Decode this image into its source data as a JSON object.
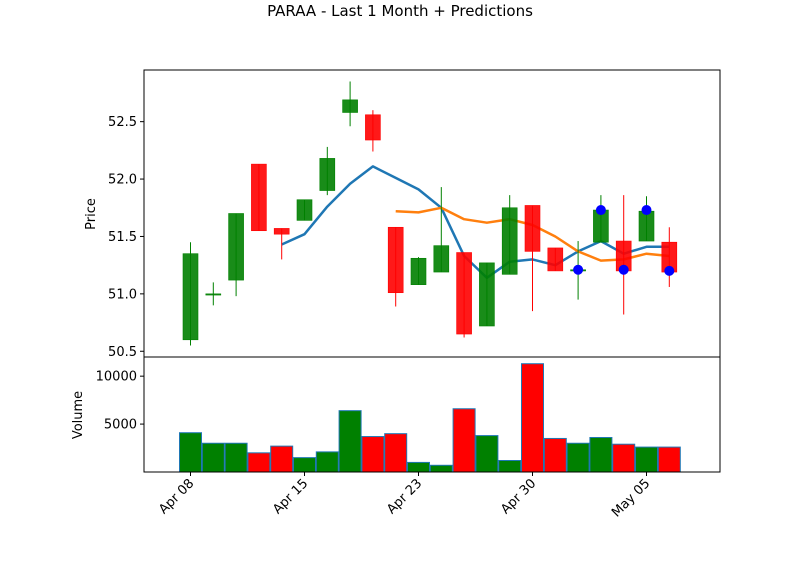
{
  "chart_data": {
    "type": "candlestick",
    "title": "PARAA - Last 1 Month + Predictions",
    "price_panel": {
      "ylabel": "Price",
      "ylim": [
        50.45,
        52.95
      ],
      "yticks": [
        "50.5",
        "51.0",
        "51.5",
        "52.0",
        "52.5"
      ],
      "ytick_values": [
        50.5,
        51.0,
        51.5,
        52.0,
        52.5
      ]
    },
    "volume_panel": {
      "ylabel": "Volume",
      "ylim": [
        0,
        12000
      ],
      "yticks": [
        "5000",
        "10000"
      ],
      "ytick_values": [
        5000,
        10000
      ]
    },
    "x_ticks": [
      {
        "label": "Apr 08",
        "index": 0
      },
      {
        "label": "Apr 15",
        "index": 5
      },
      {
        "label": "Apr 23",
        "index": 10
      },
      {
        "label": "Apr 30",
        "index": 15
      },
      {
        "label": "May 05",
        "index": 20
      }
    ],
    "candles": [
      {
        "o": 50.6,
        "h": 51.45,
        "l": 50.55,
        "c": 51.35,
        "v": 4100
      },
      {
        "o": 51.0,
        "h": 51.1,
        "l": 50.9,
        "c": 51.0,
        "v": 3000
      },
      {
        "o": 51.12,
        "h": 51.7,
        "l": 50.98,
        "c": 51.7,
        "v": 3000
      },
      {
        "o": 52.13,
        "h": 52.13,
        "l": 51.55,
        "c": 51.55,
        "v": 2000
      },
      {
        "o": 51.57,
        "h": 51.57,
        "l": 51.3,
        "c": 51.52,
        "v": 2700
      },
      {
        "o": 51.64,
        "h": 51.82,
        "l": 51.64,
        "c": 51.82,
        "v": 1500
      },
      {
        "o": 51.9,
        "h": 52.28,
        "l": 51.86,
        "c": 52.18,
        "v": 2100
      },
      {
        "o": 52.58,
        "h": 52.85,
        "l": 52.46,
        "c": 52.69,
        "v": 6400
      },
      {
        "o": 52.56,
        "h": 52.6,
        "l": 52.24,
        "c": 52.34,
        "v": 3700
      },
      {
        "o": 51.58,
        "h": 51.58,
        "l": 50.89,
        "c": 51.01,
        "v": 4000
      },
      {
        "o": 51.08,
        "h": 51.32,
        "l": 51.08,
        "c": 51.31,
        "v": 1000
      },
      {
        "o": 51.19,
        "h": 51.93,
        "l": 51.19,
        "c": 51.42,
        "v": 700
      },
      {
        "o": 51.36,
        "h": 51.36,
        "l": 50.62,
        "c": 50.65,
        "v": 6600
      },
      {
        "o": 50.72,
        "h": 51.27,
        "l": 50.72,
        "c": 51.27,
        "v": 3800
      },
      {
        "o": 51.17,
        "h": 51.86,
        "l": 51.17,
        "c": 51.75,
        "v": 1200
      },
      {
        "o": 51.77,
        "h": 51.77,
        "l": 50.85,
        "c": 51.37,
        "v": 11300
      },
      {
        "o": 51.4,
        "h": 51.4,
        "l": 51.2,
        "c": 51.2,
        "v": 3500
      },
      {
        "o": 51.21,
        "h": 51.46,
        "l": 50.95,
        "c": 51.21,
        "v": 3000
      },
      {
        "o": 51.45,
        "h": 51.86,
        "l": 51.45,
        "c": 51.73,
        "v": 3600
      },
      {
        "o": 51.46,
        "h": 51.86,
        "l": 50.82,
        "c": 51.2,
        "v": 2900
      },
      {
        "o": 51.46,
        "h": 51.85,
        "l": 51.46,
        "c": 51.72,
        "v": 2600
      },
      {
        "o": 51.45,
        "h": 51.58,
        "l": 51.06,
        "c": 51.19,
        "v": 2600
      }
    ],
    "series": [
      {
        "color": "#1f77b4",
        "values": [
          null,
          null,
          null,
          null,
          51.43,
          51.52,
          51.76,
          51.96,
          52.11,
          52.01,
          51.91,
          51.75,
          51.33,
          51.14,
          51.28,
          51.3,
          51.25,
          51.37,
          51.46,
          51.35,
          51.41,
          51.41
        ]
      },
      {
        "color": "#ff7f0e",
        "values": [
          null,
          null,
          null,
          null,
          null,
          null,
          null,
          null,
          null,
          51.72,
          51.71,
          51.75,
          51.65,
          51.62,
          51.65,
          51.6,
          51.5,
          51.37,
          51.29,
          51.3,
          51.35,
          51.33
        ]
      }
    ],
    "markers": [
      {
        "index": 17,
        "y": 51.21
      },
      {
        "index": 18,
        "y": 51.73
      },
      {
        "index": 19,
        "y": 51.21
      },
      {
        "index": 20,
        "y": 51.73
      },
      {
        "index": 21,
        "y": 51.2
      }
    ],
    "colors": {
      "up": "#008000",
      "down": "#ff0000",
      "marker": "#0000ff",
      "volume_edge": "#1f77b4"
    }
  }
}
